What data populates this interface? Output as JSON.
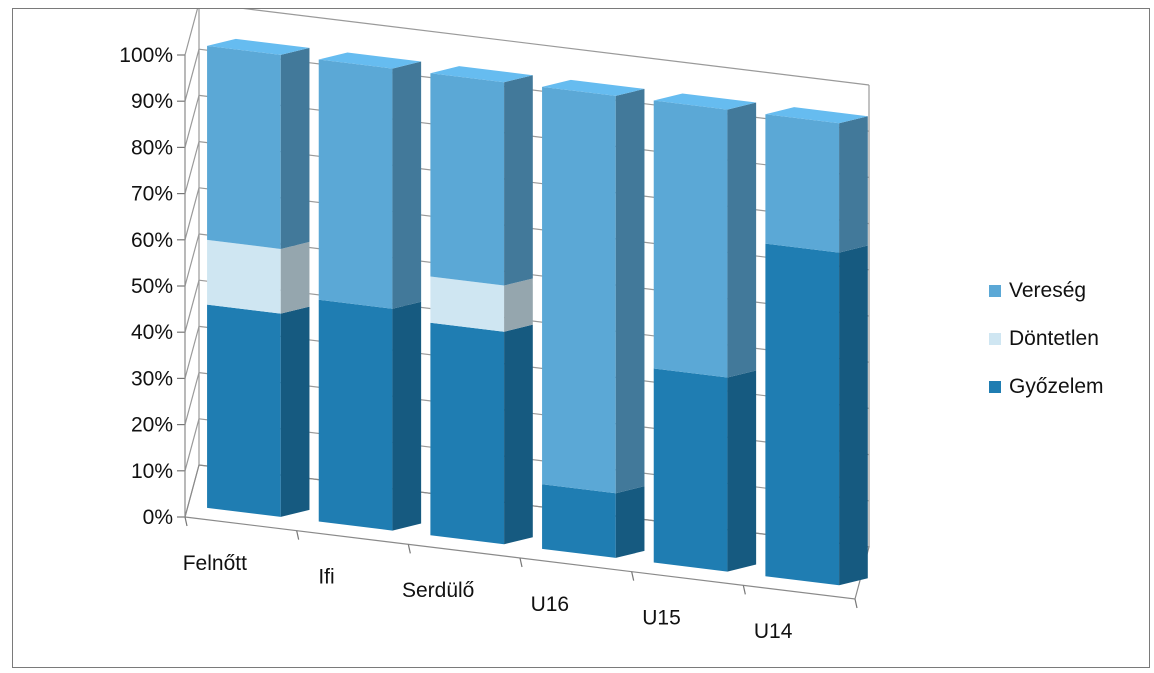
{
  "chart_data": {
    "type": "bar",
    "stacked": true,
    "style": "3d-column",
    "categories": [
      "Felnőtt",
      "Ifi",
      "Serdülő",
      "U16",
      "U15",
      "U14"
    ],
    "series": [
      {
        "name": "Győzelem",
        "values": [
          44,
          48,
          46,
          14,
          42,
          72
        ],
        "color": "#1f7db2"
      },
      {
        "name": "Döntetlen",
        "values": [
          14,
          0,
          10,
          0,
          0,
          0
        ],
        "color": "#cfe6f2"
      },
      {
        "name": "Vereség",
        "values": [
          42,
          52,
          44,
          86,
          58,
          28
        ],
        "color": "#5ba8d6"
      }
    ],
    "ylim": [
      0,
      100
    ],
    "yticks": [
      "0%",
      "10%",
      "20%",
      "30%",
      "40%",
      "50%",
      "60%",
      "70%",
      "80%",
      "90%",
      "100%"
    ],
    "grid": true,
    "legend": {
      "position": "right",
      "entries": [
        "Vereség",
        "Döntetlen",
        "Győzelem"
      ]
    }
  }
}
